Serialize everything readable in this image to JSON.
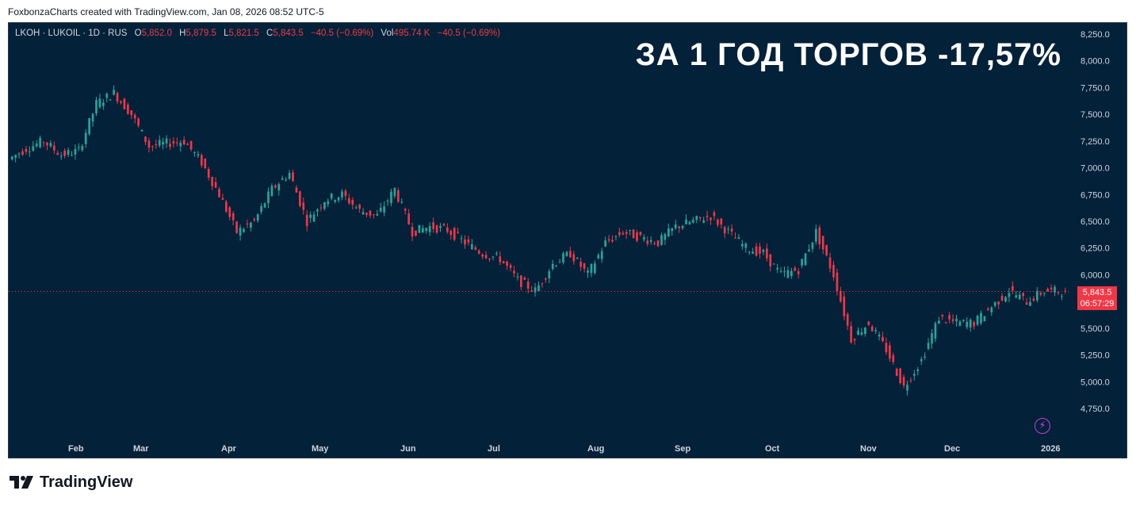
{
  "credit": "FoxbonzaCharts created with TradingView.com, Jan 08, 2026 08:52 UTC-5",
  "legend": {
    "symbol": "LKOH · LUKOIL · 1D · RUS",
    "o_label": "O",
    "o": "5,852.0",
    "h_label": "H",
    "h": "5,879.5",
    "l_label": "L",
    "l": "5,821.5",
    "c_label": "C",
    "c": "5,843.5",
    "change": "−40.5 (−0.69%)",
    "vol_label": "Vol",
    "vol": "495.74 K",
    "vol_change": "−40.5 (−0.69%)"
  },
  "headline": "ЗА 1 ГОД ТОРГОВ -17,57%",
  "current_price": {
    "value": "5,843.5",
    "countdown": "06:57:29"
  },
  "brand": "TradingView",
  "colors": {
    "background": "#03223a",
    "up": "#26a69a",
    "down": "#f23645",
    "text": "#d1d4dc"
  },
  "chart_data": {
    "type": "candlestick",
    "y_ticks": [
      "8,250.0",
      "8,000.0",
      "7,750.0",
      "7,500.0",
      "7,250.0",
      "7,000.0",
      "6,750.0",
      "6,500.0",
      "6,250.0",
      "6,000.0",
      "5,750.0",
      "5,500.0",
      "5,250.0",
      "5,000.0",
      "4,750.0"
    ],
    "ylim": [
      4620,
      8300
    ],
    "x_labels": [
      "Feb",
      "Mar",
      "Apr",
      "May",
      "Jun",
      "Jul",
      "Aug",
      "Sep",
      "Oct",
      "Nov",
      "Dec",
      "2026"
    ],
    "last_price": 5843.5,
    "series": [
      {
        "name": "LKOH",
        "weekly_close": [
          7080,
          7180,
          7250,
          7120,
          7160,
          7600,
          7700,
          7500,
          7200,
          7230,
          7250,
          7050,
          6750,
          6400,
          6500,
          6800,
          6950,
          6500,
          6700,
          6750,
          6600,
          6550,
          6800,
          6400,
          6450,
          6420,
          6300,
          6200,
          6150,
          5950,
          5850,
          6100,
          6200,
          6000,
          6300,
          6400,
          6350,
          6300,
          6450,
          6500,
          6550,
          6400,
          6250,
          6200,
          6000,
          6050,
          6400,
          6000,
          5400,
          5550,
          5300,
          4950,
          5200,
          5600,
          5550,
          5550,
          5700,
          5850,
          5750,
          5850,
          5843.5
        ]
      }
    ]
  }
}
